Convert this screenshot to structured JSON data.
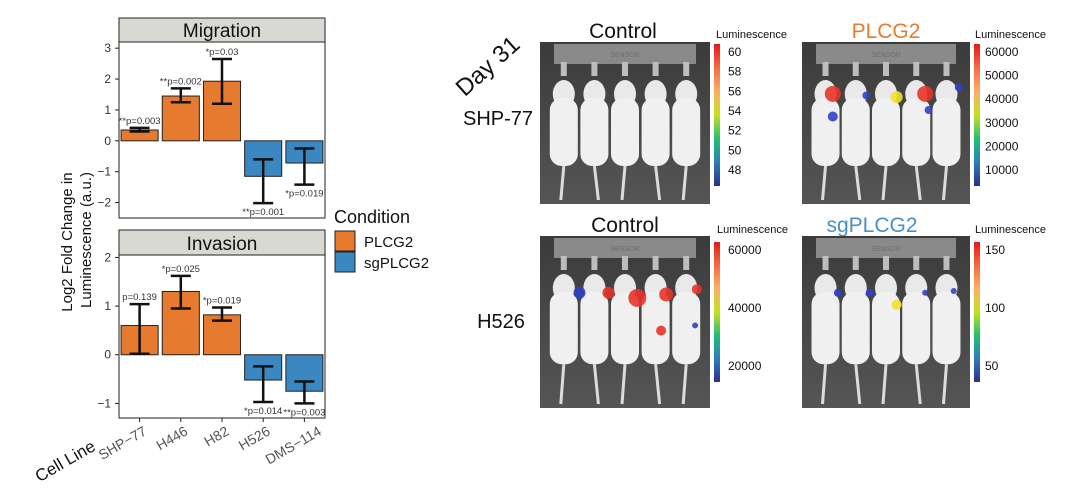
{
  "chart_data": [
    {
      "type": "bar",
      "title": "Migration",
      "ylabel": "Log2 Fold Change in Luminescence (a.u.)",
      "xlabel": "Cell Line",
      "ylim": [
        -2.5,
        3.2
      ],
      "yticks": [
        -2,
        -1,
        0,
        1,
        2,
        3
      ],
      "categories": [
        "SHP-77",
        "H446",
        "H82",
        "H526",
        "DMS-114"
      ],
      "values": [
        0.35,
        1.45,
        1.93,
        -1.15,
        -0.72
      ],
      "error_low": [
        0.3,
        1.25,
        1.2,
        -2.02,
        -1.42
      ],
      "error_high": [
        0.42,
        1.7,
        2.65,
        -0.6,
        -0.25
      ],
      "condition": [
        "PLCG2",
        "PLCG2",
        "PLCG2",
        "sgPLCG2",
        "sgPLCG2"
      ],
      "annotations": [
        "**p=0.003",
        "**p=0.002",
        "*p=0.03",
        "**p=0.001",
        "*p=0.019"
      ]
    },
    {
      "type": "bar",
      "title": "Invasion",
      "ylim": [
        -1.3,
        2.05
      ],
      "yticks": [
        -1,
        0,
        1,
        2
      ],
      "categories": [
        "SHP-77",
        "H446",
        "H82",
        "H526",
        "DMS-114"
      ],
      "values": [
        0.6,
        1.3,
        0.82,
        -0.52,
        -0.75
      ],
      "error_low": [
        0.02,
        0.95,
        0.7,
        -0.97,
        -1.0
      ],
      "error_high": [
        1.04,
        1.62,
        0.97,
        -0.24,
        -0.55
      ],
      "condition": [
        "PLCG2",
        "PLCG2",
        "PLCG2",
        "sgPLCG2",
        "sgPLCG2"
      ],
      "annotations": [
        "p=0.139",
        "*p=0.025",
        "*p=0.019",
        "*p=0.014",
        "**p=0.003"
      ]
    }
  ],
  "legend": {
    "title": "Condition",
    "items": [
      {
        "label": "PLCG2",
        "color": "#e67a2e"
      },
      {
        "label": "sgPLCG2",
        "color": "#3a87c2"
      }
    ]
  },
  "imaging": {
    "day_label": "Day 31",
    "rows": [
      {
        "cell_line": "SHP-77",
        "left_title": "Control",
        "right_title": "PLCG2",
        "right_title_color": "#e67a2e"
      },
      {
        "cell_line": "H526",
        "left_title": "Control",
        "right_title": "sgPLCG2",
        "right_title_color": "#4a8fc6"
      }
    ],
    "colorbars": [
      {
        "title": "Luminescence",
        "ticks": [
          "60",
          "58",
          "56",
          "54",
          "52",
          "50",
          "48"
        ]
      },
      {
        "title": "Luminescence",
        "ticks": [
          "60000",
          "50000",
          "40000",
          "30000",
          "20000",
          "10000"
        ]
      },
      {
        "title": "Luminescence",
        "ticks": [
          "60000",
          "40000",
          "20000"
        ]
      },
      {
        "title": "Luminescence",
        "ticks": [
          "150",
          "100",
          "50"
        ]
      }
    ],
    "plate_label": "SENSOR"
  }
}
